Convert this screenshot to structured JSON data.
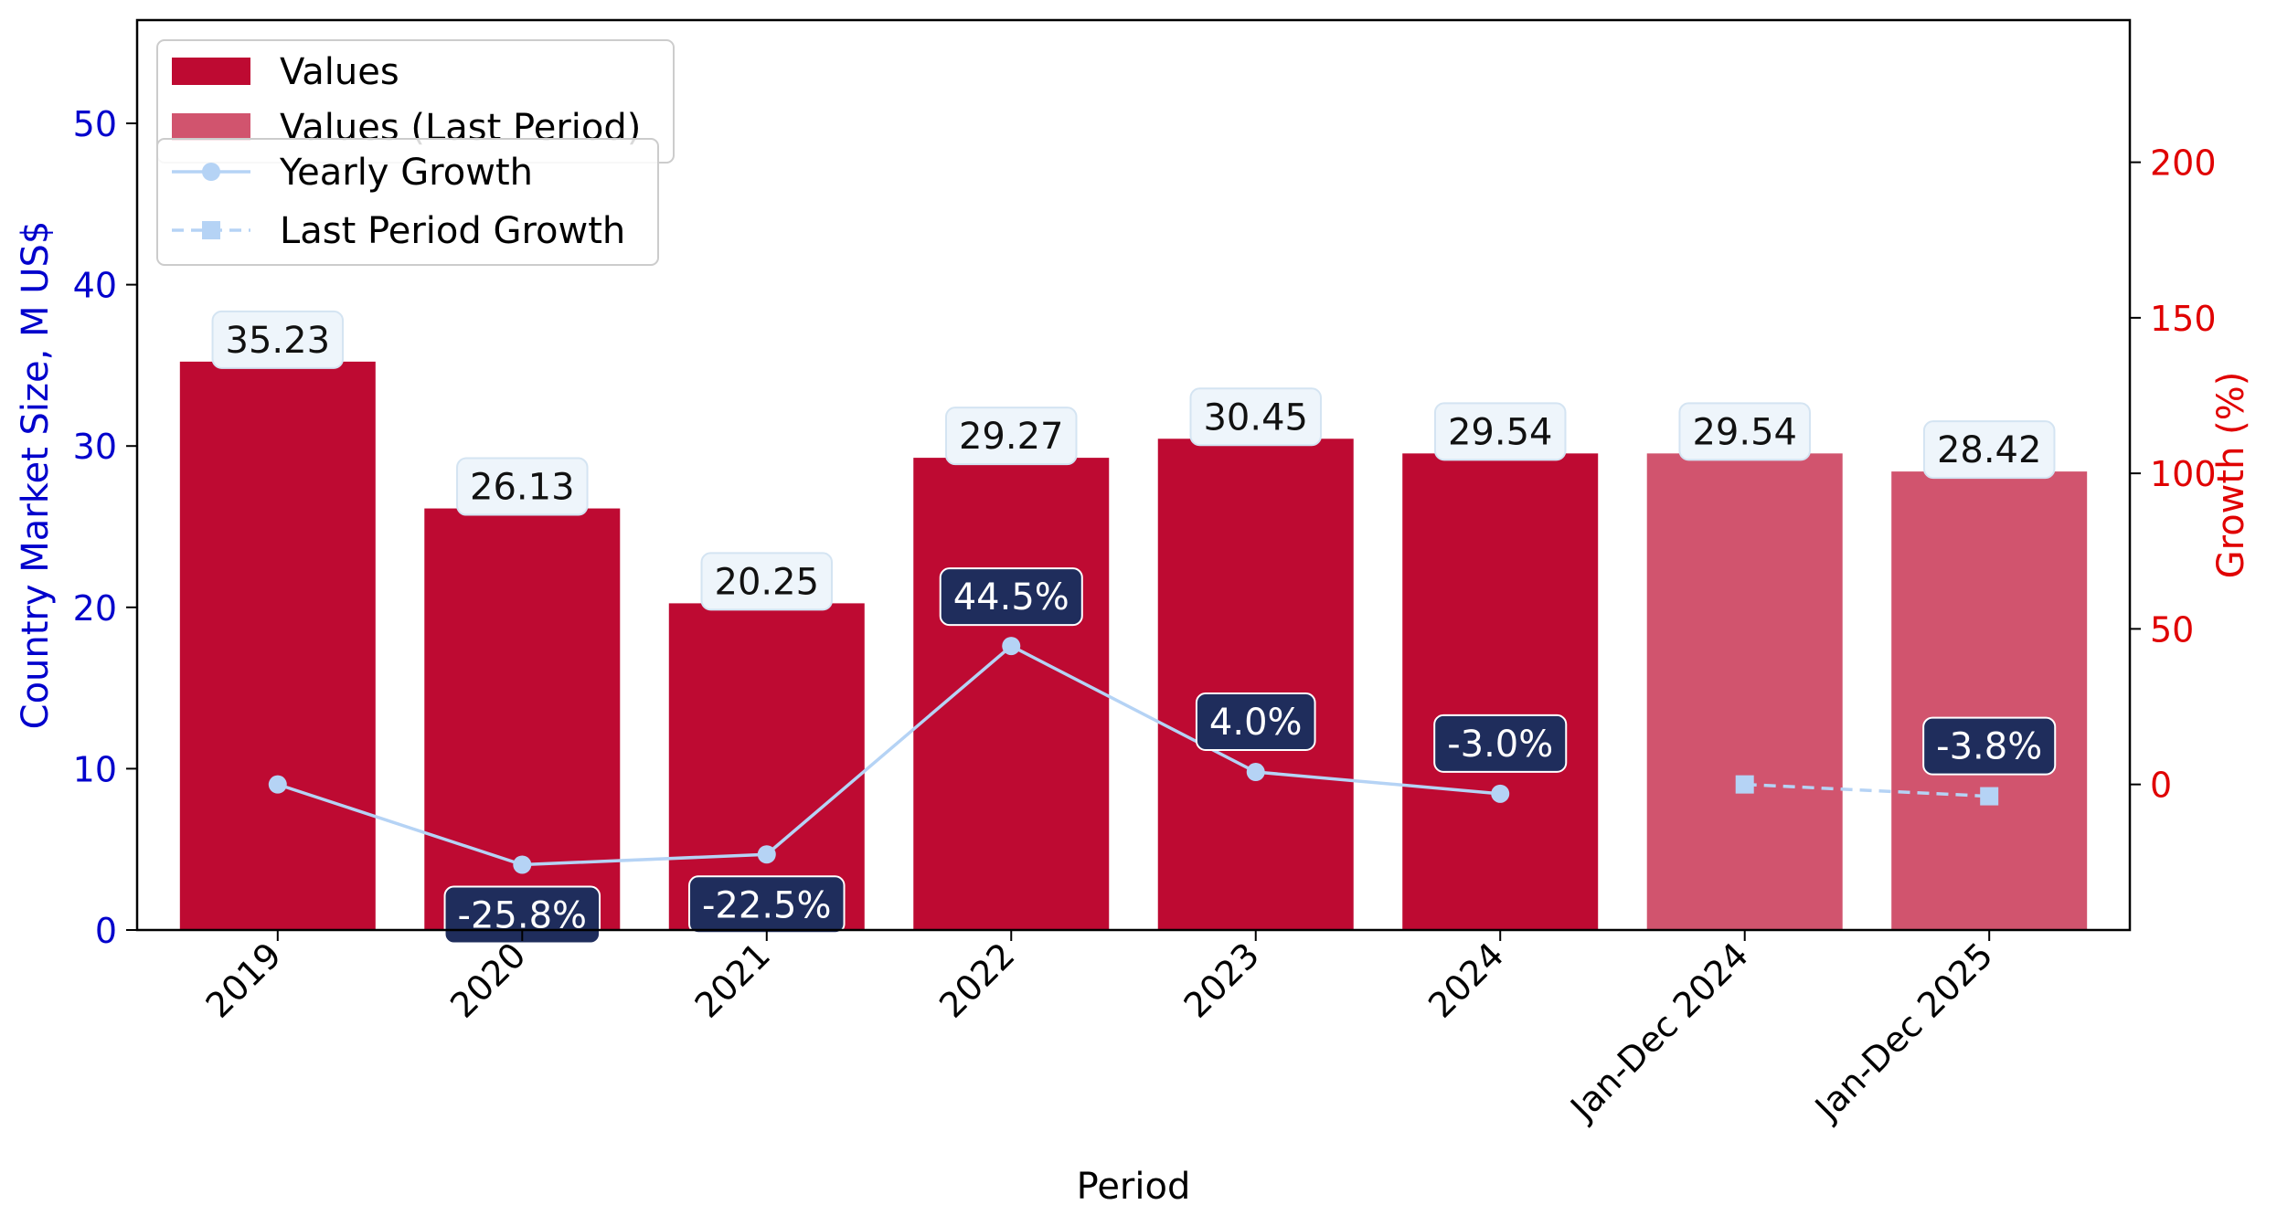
{
  "chart_data": {
    "type": "bar",
    "xlabel": "Period",
    "ylabel_left": "Country Market Size, M US$",
    "ylabel_right": "Growth (%)",
    "categories": [
      "2019",
      "2020",
      "2021",
      "2022",
      "2023",
      "2024",
      "Jan-Dec 2024",
      "Jan-Dec 2025"
    ],
    "y_left": {
      "ticks": [
        0,
        10,
        20,
        30,
        40,
        50
      ],
      "ylim": [
        0,
        56.4
      ]
    },
    "y_right": {
      "ticks": [
        0,
        50,
        100,
        150,
        200
      ],
      "ylim": [
        -46.8,
        245.7
      ]
    },
    "series": [
      {
        "name": "Values",
        "kind": "bar",
        "color": "#be0a32",
        "values": [
          35.23,
          26.13,
          20.25,
          29.27,
          30.45,
          29.54,
          null,
          null
        ],
        "labels": [
          "35.23",
          "26.13",
          "20.25",
          "29.27",
          "30.45",
          "29.54",
          "",
          ""
        ]
      },
      {
        "name": "Values (Last Period)",
        "kind": "bar",
        "color": "#d1546e",
        "values": [
          null,
          null,
          null,
          null,
          null,
          null,
          29.54,
          28.42
        ],
        "labels": [
          "",
          "",
          "",
          "",
          "",
          "",
          "29.54",
          "28.42"
        ]
      },
      {
        "name": "Yearly Growth",
        "kind": "line",
        "color": "#b5d3f5",
        "marker": "circle",
        "values": [
          0.0,
          -25.8,
          -22.5,
          44.5,
          4.0,
          -3.0,
          null,
          null
        ],
        "labels": [
          "",
          "-25.8%",
          "-22.5%",
          "44.5%",
          "4.0%",
          "-3.0%",
          "",
          ""
        ]
      },
      {
        "name": "Last Period Growth",
        "kind": "line",
        "style": "dashed",
        "color": "#b5d3f5",
        "marker": "square",
        "values": [
          null,
          null,
          null,
          null,
          null,
          null,
          0.0,
          -3.8
        ],
        "labels": [
          "",
          "",
          "",
          "",
          "",
          "",
          "",
          "-3.8%"
        ]
      }
    ],
    "legend_position": "top-left",
    "grid": false
  },
  "colors": {
    "left_axis": "#0000cc",
    "right_axis": "#e00000",
    "growth_label_bg": "#1f2d5c",
    "value_label_bg": "#eef5fb"
  }
}
